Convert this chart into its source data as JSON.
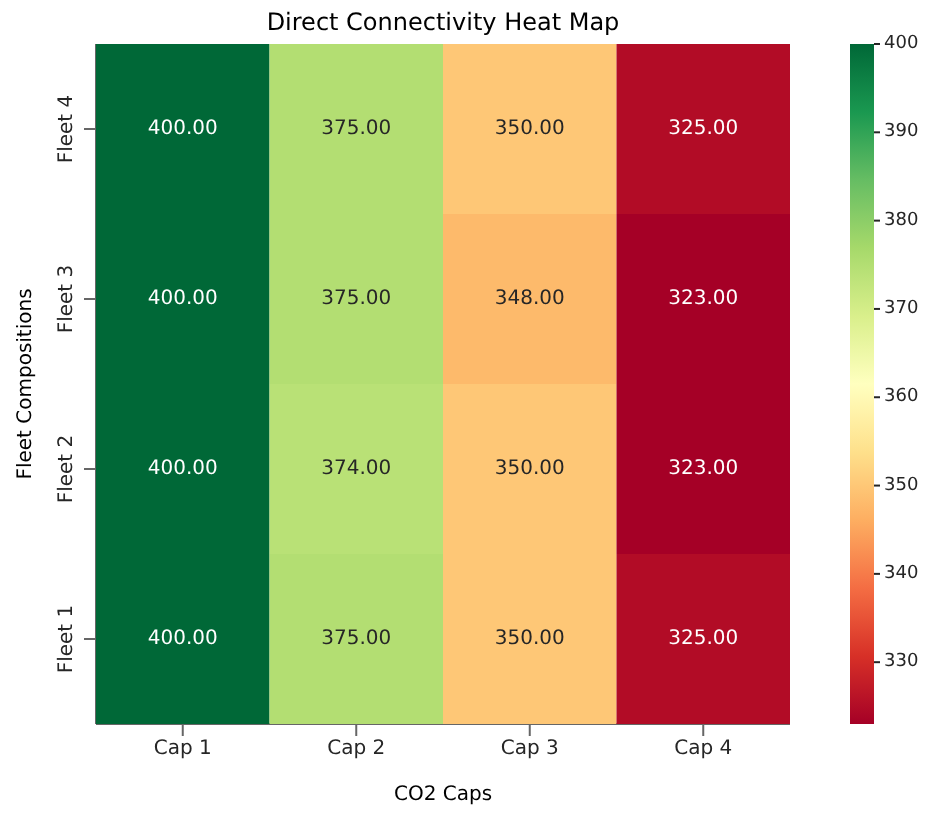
{
  "chart_data": {
    "type": "heatmap",
    "title": "Direct Connectivity Heat Map",
    "xlabel": "CO2 Caps",
    "ylabel": "Fleet Compositions",
    "categories": [
      "Cap 1",
      "Cap 2",
      "Cap 3",
      "Cap 4"
    ],
    "y_categories": [
      "Fleet 4",
      "Fleet 3",
      "Fleet 2",
      "Fleet 1"
    ],
    "cells": [
      [
        400,
        375,
        350,
        325
      ],
      [
        400,
        375,
        348,
        323
      ],
      [
        400,
        374,
        350,
        323
      ],
      [
        400,
        375,
        350,
        325
      ]
    ],
    "cell_labels": [
      [
        "400.00",
        "375.00",
        "350.00",
        "325.00"
      ],
      [
        "400.00",
        "375.00",
        "348.00",
        "323.00"
      ],
      [
        "400.00",
        "374.00",
        "350.00",
        "323.00"
      ],
      [
        "400.00",
        "375.00",
        "350.00",
        "325.00"
      ]
    ],
    "clim": [
      323,
      400
    ],
    "cticks": [
      330,
      340,
      350,
      360,
      370,
      380,
      390,
      400
    ]
  }
}
